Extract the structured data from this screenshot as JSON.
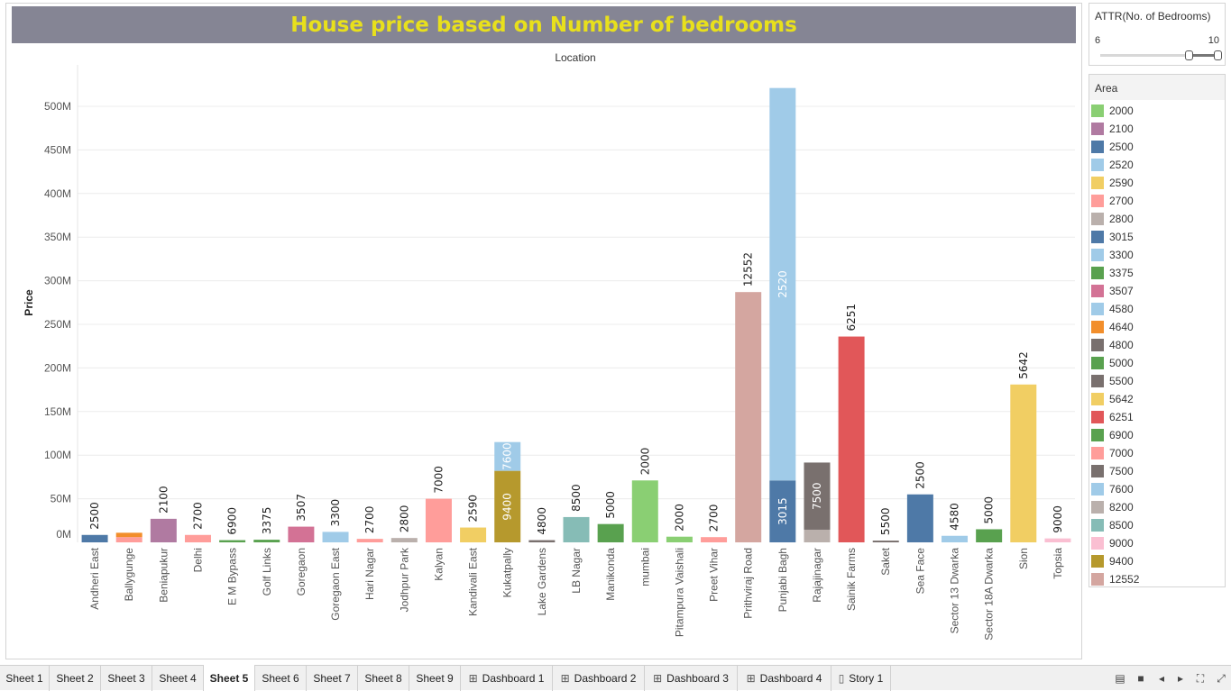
{
  "title": "House price based on Number of bedrooms",
  "slider": {
    "title": "ATTR(No. of Bedrooms)",
    "min_label": "6",
    "max_label": "10",
    "low_value": 9.0,
    "high_value": 10
  },
  "legend": {
    "title": "Area",
    "items": [
      {
        "label": "2000",
        "color": "#8acf73"
      },
      {
        "label": "2100",
        "color": "#b07aa1"
      },
      {
        "label": "2500",
        "color": "#4e79a7"
      },
      {
        "label": "2520",
        "color": "#a0cbe8"
      },
      {
        "label": "2590",
        "color": "#f1ce63"
      },
      {
        "label": "2700",
        "color": "#ff9d9a"
      },
      {
        "label": "2800",
        "color": "#bab0ac"
      },
      {
        "label": "3015",
        "color": "#4e79a7"
      },
      {
        "label": "3300",
        "color": "#a0cbe8"
      },
      {
        "label": "3375",
        "color": "#59a14f"
      },
      {
        "label": "3507",
        "color": "#d37295"
      },
      {
        "label": "4580",
        "color": "#a0cbe8"
      },
      {
        "label": "4640",
        "color": "#f28e2b"
      },
      {
        "label": "4800",
        "color": "#79706e"
      },
      {
        "label": "5000",
        "color": "#59a14f"
      },
      {
        "label": "5500",
        "color": "#79706e"
      },
      {
        "label": "5642",
        "color": "#f1ce63"
      },
      {
        "label": "6251",
        "color": "#e15759"
      },
      {
        "label": "6900",
        "color": "#59a14f"
      },
      {
        "label": "7000",
        "color": "#ff9d9a"
      },
      {
        "label": "7500",
        "color": "#79706e"
      },
      {
        "label": "7600",
        "color": "#a0cbe8"
      },
      {
        "label": "8200",
        "color": "#bab0ac"
      },
      {
        "label": "8500",
        "color": "#86bcb6"
      },
      {
        "label": "9000",
        "color": "#fabfd2"
      },
      {
        "label": "9400",
        "color": "#b6992d"
      },
      {
        "label": "12552",
        "color": "#d4a6a0"
      }
    ]
  },
  "tabs": [
    {
      "label": "Sheet 1",
      "icon": ""
    },
    {
      "label": "Sheet 2",
      "icon": ""
    },
    {
      "label": "Sheet 3",
      "icon": ""
    },
    {
      "label": "Sheet 4",
      "icon": ""
    },
    {
      "label": "Sheet 5",
      "icon": "",
      "active": true
    },
    {
      "label": "Sheet 6",
      "icon": ""
    },
    {
      "label": "Sheet 7",
      "icon": ""
    },
    {
      "label": "Sheet 8",
      "icon": ""
    },
    {
      "label": "Sheet 9",
      "icon": ""
    },
    {
      "label": "Dashboard 1",
      "icon": "grid-icon"
    },
    {
      "label": "Dashboard 2",
      "icon": "grid-icon"
    },
    {
      "label": "Dashboard 3",
      "icon": "grid-icon"
    },
    {
      "label": "Dashboard 4",
      "icon": "grid-icon"
    },
    {
      "label": "Story 1",
      "icon": "story-icon"
    }
  ],
  "nav_icons": [
    "tab-list-icon",
    "sheet-sorter-icon",
    "prev-sheet-icon",
    "next-sheet-icon",
    "fullscreen-icon",
    "fit-icon"
  ],
  "chart_data": {
    "type": "bar",
    "top_label": "Location",
    "ylabel": "Price",
    "ylim": [
      0,
      530000000
    ],
    "yticks": [
      {
        "value": 0,
        "label": "0M"
      },
      {
        "value": 50000000,
        "label": "50M"
      },
      {
        "value": 100000000,
        "label": "100M"
      },
      {
        "value": 150000000,
        "label": "150M"
      },
      {
        "value": 200000000,
        "label": "200M"
      },
      {
        "value": 250000000,
        "label": "250M"
      },
      {
        "value": 300000000,
        "label": "300M"
      },
      {
        "value": 350000000,
        "label": "350M"
      },
      {
        "value": 400000000,
        "label": "400M"
      },
      {
        "value": 450000000,
        "label": "450M"
      },
      {
        "value": 500000000,
        "label": "500M"
      }
    ],
    "bars": [
      {
        "location": "Andheri East",
        "segments": [
          {
            "area": "2500",
            "value": 8500000
          }
        ],
        "label": "2500"
      },
      {
        "location": "Ballygunge",
        "segments": [
          {
            "area": "2700",
            "value": 6000000
          },
          {
            "area": "4640",
            "value": 5000000
          }
        ],
        "label": ""
      },
      {
        "location": "Beniapukur",
        "segments": [
          {
            "area": "2100",
            "value": 27000000
          }
        ],
        "label": "2100"
      },
      {
        "location": "Delhi",
        "segments": [
          {
            "area": "2700",
            "value": 8500000
          }
        ],
        "label": "2700"
      },
      {
        "location": "E M Bypass",
        "segments": [
          {
            "area": "6900",
            "value": 2500000
          }
        ],
        "label": "6900"
      },
      {
        "location": "Golf Links",
        "segments": [
          {
            "area": "3375",
            "value": 3000000
          }
        ],
        "label": "3375"
      },
      {
        "location": "Goregaon",
        "segments": [
          {
            "area": "3507",
            "value": 18000000
          }
        ],
        "label": "3507"
      },
      {
        "location": "Goregaon East",
        "segments": [
          {
            "area": "3300",
            "value": 12000000
          }
        ],
        "label": "3300"
      },
      {
        "location": "Hari Nagar",
        "segments": [
          {
            "area": "2700",
            "value": 4000000
          }
        ],
        "label": "2700"
      },
      {
        "location": "Jodhpur Park",
        "segments": [
          {
            "area": "2800",
            "value": 5000000
          }
        ],
        "label": "2800"
      },
      {
        "location": "Kalyan",
        "segments": [
          {
            "area": "7000",
            "value": 50000000
          }
        ],
        "label": "7000"
      },
      {
        "location": "Kandivali East",
        "segments": [
          {
            "area": "2590",
            "value": 17000000
          }
        ],
        "label": "2590"
      },
      {
        "location": "Kukatpally",
        "segments": [
          {
            "area": "9400",
            "value": 82000000,
            "label": "9400"
          },
          {
            "area": "7600",
            "value": 33000000,
            "label": "7600"
          }
        ],
        "label": ""
      },
      {
        "location": "Lake Gardens",
        "segments": [
          {
            "area": "4800",
            "value": 2500000
          }
        ],
        "label": "4800"
      },
      {
        "location": "LB Nagar",
        "segments": [
          {
            "area": "8500",
            "value": 29000000
          }
        ],
        "label": "8500"
      },
      {
        "location": "Manikonda",
        "segments": [
          {
            "area": "5000",
            "value": 21000000
          }
        ],
        "label": "5000"
      },
      {
        "location": "mumbai",
        "segments": [
          {
            "area": "2000",
            "value": 71000000
          }
        ],
        "label": "2000"
      },
      {
        "location": "Pitampura Vaishali",
        "segments": [
          {
            "area": "2000",
            "value": 6500000
          }
        ],
        "label": "2000"
      },
      {
        "location": "Preet Vihar",
        "segments": [
          {
            "area": "2700",
            "value": 6000000
          }
        ],
        "label": "2700"
      },
      {
        "location": "Prithviraj Road",
        "segments": [
          {
            "area": "12552",
            "value": 287000000
          }
        ],
        "label": "12552"
      },
      {
        "location": "Punjabi Bagh",
        "segments": [
          {
            "area": "3015",
            "value": 71000000,
            "label": "3015"
          },
          {
            "area": "2520",
            "value": 450000000,
            "label": "2520"
          }
        ],
        "label": ""
      },
      {
        "location": "Rajajinagar",
        "segments": [
          {
            "area": "8200",
            "value": 14500000
          },
          {
            "area": "7500",
            "value": 77000000,
            "label": "7500"
          }
        ],
        "label": ""
      },
      {
        "location": "Sainik Farms",
        "segments": [
          {
            "area": "6251",
            "value": 236000000
          }
        ],
        "label": "6251"
      },
      {
        "location": "Saket",
        "segments": [
          {
            "area": "5500",
            "value": 2000000
          }
        ],
        "label": "5500"
      },
      {
        "location": "Sea Face",
        "segments": [
          {
            "area": "2500",
            "value": 55000000
          }
        ],
        "label": "2500"
      },
      {
        "location": "Sector 13 Dwarka",
        "segments": [
          {
            "area": "4580",
            "value": 7500000
          }
        ],
        "label": "4580"
      },
      {
        "location": "Sector 18A Dwarka",
        "segments": [
          {
            "area": "5000",
            "value": 15000000
          }
        ],
        "label": "5000"
      },
      {
        "location": "Sion",
        "segments": [
          {
            "area": "5642",
            "value": 181000000
          }
        ],
        "label": "5642"
      },
      {
        "location": "Topsia",
        "segments": [
          {
            "area": "9000",
            "value": 4500000
          }
        ],
        "label": "9000"
      }
    ]
  }
}
